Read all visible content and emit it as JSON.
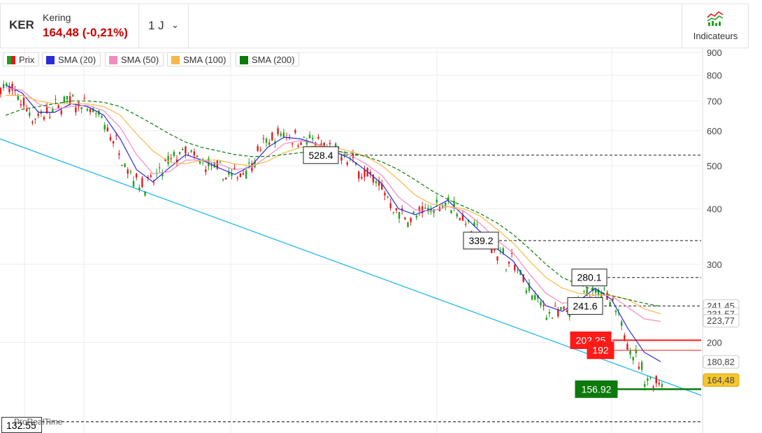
{
  "header": {
    "ticker": "KER",
    "company": "Kering",
    "price_change": "164,48 (-0,21%)",
    "period": "1 J",
    "indicators_label": "Indicateurs"
  },
  "legend": [
    {
      "label": "Prix",
      "color": "#1fa11f",
      "color2": "#e01b1b"
    },
    {
      "label": "SMA (20)",
      "color": "#2b2bd6"
    },
    {
      "label": "SMA (50)",
      "color": "#f08cc0"
    },
    {
      "label": "SMA (100)",
      "color": "#f7b84a"
    },
    {
      "label": "SMA (200)",
      "color": "#0a7a0a"
    }
  ],
  "watermark": "ProRealTime",
  "chart_data": {
    "type": "line",
    "y_scale": "log",
    "ylim": [
      125,
      920
    ],
    "y_ticks": [
      "900",
      "800",
      "700",
      "600",
      "500",
      "400",
      "300",
      "200"
    ],
    "y_tick_values": [
      900,
      800,
      700,
      600,
      500,
      400,
      300,
      200
    ],
    "series": [
      {
        "name": "Prix",
        "color": "#e01b1b",
        "y": [
          760,
          720,
          640,
          660,
          700,
          680,
          640,
          560,
          470,
          450,
          500,
          540,
          510,
          490,
          470,
          500,
          560,
          590,
          580,
          560,
          540,
          520,
          480,
          450,
          390,
          380,
          400,
          420,
          380,
          350,
          320,
          300,
          260,
          235,
          230,
          245,
          270,
          240,
          200,
          165,
          164
        ]
      },
      {
        "name": "SMA (20)",
        "color": "#2b2bd6",
        "y": [
          760,
          730,
          660,
          660,
          690,
          680,
          650,
          575,
          490,
          460,
          495,
          530,
          515,
          495,
          478,
          500,
          550,
          580,
          575,
          560,
          540,
          520,
          488,
          455,
          400,
          388,
          400,
          418,
          385,
          355,
          325,
          305,
          268,
          242,
          235,
          248,
          265,
          250,
          215,
          190,
          181
        ]
      },
      {
        "name": "SMA (50)",
        "color": "#f08cc0",
        "y": [
          750,
          740,
          690,
          670,
          680,
          685,
          665,
          610,
          530,
          480,
          485,
          515,
          515,
          505,
          490,
          495,
          525,
          560,
          570,
          560,
          545,
          530,
          505,
          475,
          425,
          398,
          395,
          405,
          395,
          370,
          340,
          318,
          285,
          258,
          245,
          248,
          256,
          255,
          240,
          226,
          223
        ]
      },
      {
        "name": "SMA (100)",
        "color": "#f7b84a",
        "y": [
          720,
          720,
          700,
          690,
          690,
          690,
          680,
          650,
          590,
          540,
          510,
          505,
          515,
          515,
          505,
          500,
          512,
          535,
          550,
          555,
          550,
          540,
          525,
          500,
          465,
          430,
          410,
          405,
          400,
          385,
          360,
          335,
          305,
          280,
          265,
          258,
          256,
          255,
          250,
          238,
          232
        ]
      },
      {
        "name": "SMA (200)",
        "color": "#0a7a0a",
        "y": [
          650,
          670,
          680,
          690,
          700,
          700,
          695,
          680,
          650,
          620,
          590,
          565,
          550,
          540,
          530,
          525,
          525,
          530,
          535,
          540,
          540,
          535,
          525,
          510,
          490,
          465,
          440,
          420,
          405,
          390,
          372,
          350,
          325,
          300,
          280,
          270,
          262,
          255,
          250,
          245,
          241
        ]
      }
    ],
    "support_trendline": {
      "color": "#22b8e8",
      "from": 575,
      "to": 152
    },
    "levels": [
      {
        "label": "528.4",
        "value": 528.4,
        "style": "dashed",
        "box": "white"
      },
      {
        "label": "339.2",
        "value": 339.2,
        "style": "dashed",
        "box": "white"
      },
      {
        "label": "280.1",
        "value": 280.1,
        "style": "dashed",
        "box": "white"
      },
      {
        "label": "241.6",
        "value": 241.6,
        "style": "dashed",
        "box": "white"
      },
      {
        "label": "202.25",
        "value": 202.25,
        "style": "solid-red",
        "box": "red"
      },
      {
        "label": "192",
        "value": 192,
        "style": "solid-red",
        "box": "red"
      },
      {
        "label": "156.92",
        "value": 156.92,
        "style": "solid-green",
        "box": "green"
      },
      {
        "label": "132.55",
        "value": 132.55,
        "style": "dashed",
        "box": "white"
      }
    ],
    "axis_badges": [
      {
        "label": "241,45",
        "value": 241.45,
        "color": "#0a7a0a",
        "bg": "#ffffff"
      },
      {
        "label": "231,57",
        "value": 231.57,
        "color": "#f0a020",
        "bg": "#ffffff"
      },
      {
        "label": "223,77",
        "value": 223.77,
        "color": "#f08cc0",
        "bg": "#ffffff"
      },
      {
        "label": "180,82",
        "value": 180.82,
        "color": "#2b2bd6",
        "bg": "#ffffff"
      },
      {
        "label": "164,48",
        "value": 164.48,
        "color": "#000000",
        "bg": "#f7c62f"
      }
    ]
  }
}
